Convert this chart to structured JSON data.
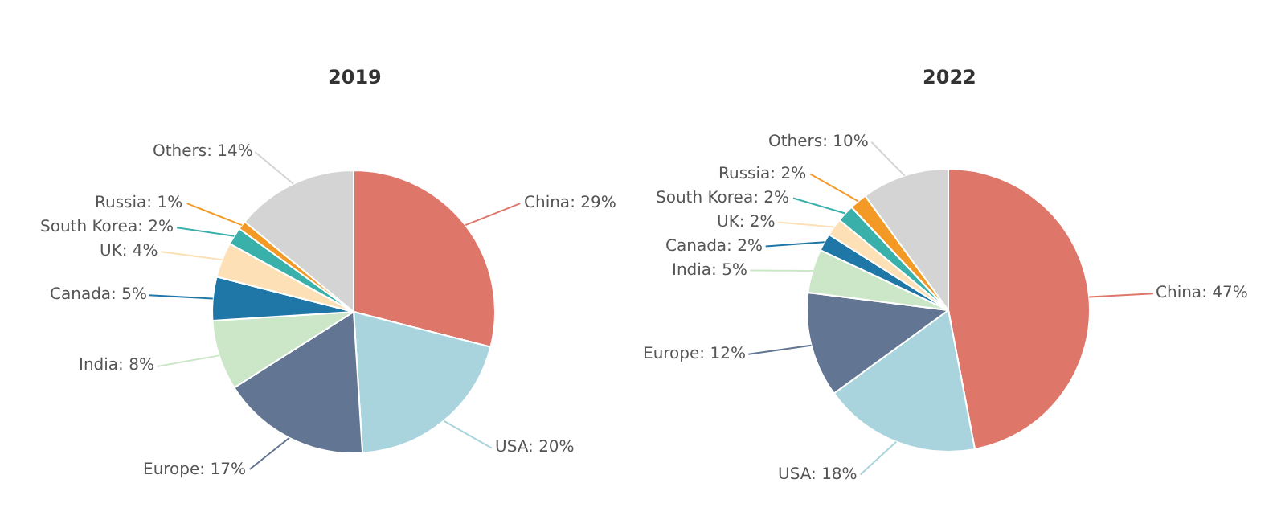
{
  "chart_data": [
    {
      "type": "pie",
      "title": "2019",
      "categories": [
        "China",
        "USA",
        "Europe",
        "India",
        "Canada",
        "UK",
        "South Korea",
        "Russia",
        "Others"
      ],
      "values": [
        29,
        20,
        17,
        8,
        5,
        4,
        2,
        1,
        14
      ],
      "colors": [
        "#df766a",
        "#a9d4dd",
        "#627593",
        "#cbe7c8",
        "#1f77a8",
        "#fde0b5",
        "#3ab0aa",
        "#f39a26",
        "#d4d4d4"
      ],
      "value_labels": [
        "29%",
        "20%",
        "17%",
        "8%",
        "5%",
        "4%",
        "2%",
        "1%",
        "14%"
      ]
    },
    {
      "type": "pie",
      "title": "2022",
      "categories": [
        "China",
        "USA",
        "Europe",
        "India",
        "Canada",
        "UK",
        "South Korea",
        "Russia",
        "Others"
      ],
      "values": [
        47,
        18,
        12,
        5,
        2,
        2,
        2,
        2,
        10
      ],
      "colors": [
        "#df766a",
        "#a9d4dd",
        "#627593",
        "#cbe7c8",
        "#1f77a8",
        "#fde0b5",
        "#3ab0aa",
        "#f39a26",
        "#d4d4d4"
      ],
      "value_labels": [
        "47%",
        "18%",
        "12%",
        "5%",
        "2%",
        "2%",
        "2%",
        "2%",
        "10%"
      ]
    }
  ]
}
